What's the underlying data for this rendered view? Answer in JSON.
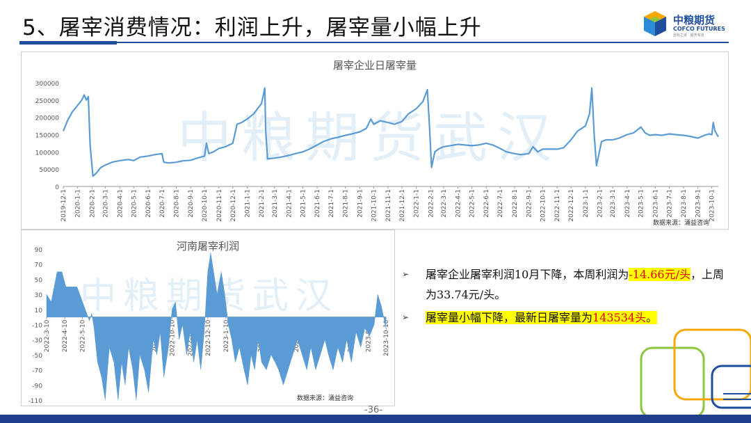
{
  "slide": {
    "title": "5、屠宰消费情况：利润上升，屠宰量小幅上升",
    "logo_cn": "中粮期货",
    "logo_en": "COFCO FUTURES",
    "logo_tagline": "自有之道 · 服务有道",
    "page_number": "-36-"
  },
  "colors": {
    "accent": "#1f4e9c",
    "series": "#5b9bd5",
    "highlight": "#ffff00",
    "emphasis": "#e00000"
  },
  "chart_data": [
    {
      "type": "line",
      "title": "屠宰企业日屠宰量",
      "source": "数据来源：涌益咨询",
      "watermark": "中粮期货武汉",
      "ylim": [
        0,
        300000
      ],
      "yticks": [
        0,
        50000,
        100000,
        150000,
        200000,
        250000,
        300000
      ],
      "xlim": [
        "2019-12-01",
        "2023-10-15"
      ],
      "xticks": [
        "2019-12-1",
        "2020-1-1",
        "2020-2-1",
        "2020-3-1",
        "2020-4-1",
        "2020-5-1",
        "2020-6-1",
        "2020-7-1",
        "2020-8-1",
        "2020-9-1",
        "2020-10-1",
        "2020-11-1",
        "2020-12-1",
        "2021-1-1",
        "2021-2-1",
        "2021-3-1",
        "2021-4-1",
        "2021-5-1",
        "2021-6-1",
        "2021-7-1",
        "2021-8-1",
        "2021-9-1",
        "2021-10-1",
        "2021-11-1",
        "2021-12-1",
        "2022-1-1",
        "2022-2-1",
        "2022-3-1",
        "2022-4-1",
        "2022-5-1",
        "2022-6-1",
        "2022-7-1",
        "2022-8-1",
        "2022-9-1",
        "2022-10-1",
        "2022-11-1",
        "2022-12-1",
        "2023-1-1",
        "2023-2-1",
        "2023-3-1",
        "2023-4-1",
        "2023-5-1",
        "2023-6-1",
        "2023-7-1",
        "2023-8-1",
        "2023-9-1",
        "2023-10-1"
      ],
      "points": [
        [
          "2019-12-01",
          160000
        ],
        [
          "2019-12-10",
          190000
        ],
        [
          "2019-12-20",
          215000
        ],
        [
          "2020-01-01",
          235000
        ],
        [
          "2020-01-10",
          250000
        ],
        [
          "2020-01-15",
          265000
        ],
        [
          "2020-01-20",
          250000
        ],
        [
          "2020-01-24",
          260000
        ],
        [
          "2020-01-28",
          120000
        ],
        [
          "2020-02-03",
          30000
        ],
        [
          "2020-02-10",
          38000
        ],
        [
          "2020-02-20",
          55000
        ],
        [
          "2020-03-01",
          62000
        ],
        [
          "2020-03-15",
          70000
        ],
        [
          "2020-04-01",
          75000
        ],
        [
          "2020-04-20",
          78000
        ],
        [
          "2020-05-01",
          75000
        ],
        [
          "2020-05-15",
          85000
        ],
        [
          "2020-06-01",
          88000
        ],
        [
          "2020-06-15",
          92000
        ],
        [
          "2020-07-01",
          95000
        ],
        [
          "2020-07-05",
          70000
        ],
        [
          "2020-07-15",
          68000
        ],
        [
          "2020-08-01",
          70000
        ],
        [
          "2020-08-15",
          74000
        ],
        [
          "2020-09-01",
          76000
        ],
        [
          "2020-09-15",
          82000
        ],
        [
          "2020-10-01",
          88000
        ],
        [
          "2020-10-05",
          125000
        ],
        [
          "2020-10-10",
          95000
        ],
        [
          "2020-10-20",
          100000
        ],
        [
          "2020-11-01",
          110000
        ],
        [
          "2020-11-15",
          115000
        ],
        [
          "2020-12-01",
          125000
        ],
        [
          "2020-12-10",
          180000
        ],
        [
          "2020-12-20",
          185000
        ],
        [
          "2021-01-01",
          195000
        ],
        [
          "2021-01-15",
          210000
        ],
        [
          "2021-02-01",
          240000
        ],
        [
          "2021-02-08",
          285000
        ],
        [
          "2021-02-10",
          160000
        ],
        [
          "2021-02-14",
          80000
        ],
        [
          "2021-03-01",
          82000
        ],
        [
          "2021-03-15",
          85000
        ],
        [
          "2021-04-01",
          90000
        ],
        [
          "2021-04-15",
          95000
        ],
        [
          "2021-05-01",
          100000
        ],
        [
          "2021-05-15",
          108000
        ],
        [
          "2021-06-01",
          120000
        ],
        [
          "2021-06-15",
          130000
        ],
        [
          "2021-07-01",
          138000
        ],
        [
          "2021-07-15",
          142000
        ],
        [
          "2021-08-01",
          148000
        ],
        [
          "2021-08-15",
          152000
        ],
        [
          "2021-09-01",
          158000
        ],
        [
          "2021-09-15",
          168000
        ],
        [
          "2021-09-25",
          195000
        ],
        [
          "2021-10-01",
          180000
        ],
        [
          "2021-10-15",
          190000
        ],
        [
          "2021-11-01",
          185000
        ],
        [
          "2021-11-15",
          180000
        ],
        [
          "2021-12-01",
          188000
        ],
        [
          "2021-12-15",
          210000
        ],
        [
          "2022-01-01",
          225000
        ],
        [
          "2022-01-15",
          245000
        ],
        [
          "2022-01-25",
          280000
        ],
        [
          "2022-01-30",
          160000
        ],
        [
          "2022-02-03",
          55000
        ],
        [
          "2022-02-10",
          100000
        ],
        [
          "2022-02-20",
          110000
        ],
        [
          "2022-03-01",
          115000
        ],
        [
          "2022-03-15",
          118000
        ],
        [
          "2022-04-01",
          122000
        ],
        [
          "2022-04-15",
          120000
        ],
        [
          "2022-05-01",
          118000
        ],
        [
          "2022-05-15",
          120000
        ],
        [
          "2022-06-01",
          125000
        ],
        [
          "2022-06-15",
          120000
        ],
        [
          "2022-07-01",
          110000
        ],
        [
          "2022-07-15",
          100000
        ],
        [
          "2022-08-01",
          95000
        ],
        [
          "2022-08-15",
          92000
        ],
        [
          "2022-09-01",
          95000
        ],
        [
          "2022-09-10",
          115000
        ],
        [
          "2022-09-20",
          100000
        ],
        [
          "2022-10-01",
          108000
        ],
        [
          "2022-10-15",
          108000
        ],
        [
          "2022-11-01",
          108000
        ],
        [
          "2022-11-15",
          112000
        ],
        [
          "2022-12-01",
          135000
        ],
        [
          "2022-12-15",
          160000
        ],
        [
          "2023-01-01",
          175000
        ],
        [
          "2023-01-10",
          210000
        ],
        [
          "2023-01-15",
          285000
        ],
        [
          "2023-01-20",
          150000
        ],
        [
          "2023-01-25",
          60000
        ],
        [
          "2023-02-05",
          130000
        ],
        [
          "2023-02-15",
          135000
        ],
        [
          "2023-03-01",
          135000
        ],
        [
          "2023-03-15",
          140000
        ],
        [
          "2023-04-01",
          150000
        ],
        [
          "2023-04-15",
          155000
        ],
        [
          "2023-05-01",
          172000
        ],
        [
          "2023-05-10",
          155000
        ],
        [
          "2023-05-20",
          148000
        ],
        [
          "2023-06-01",
          150000
        ],
        [
          "2023-06-15",
          148000
        ],
        [
          "2023-07-01",
          152000
        ],
        [
          "2023-07-15",
          150000
        ],
        [
          "2023-08-01",
          148000
        ],
        [
          "2023-08-15",
          145000
        ],
        [
          "2023-09-01",
          140000
        ],
        [
          "2023-09-15",
          148000
        ],
        [
          "2023-09-25",
          152000
        ],
        [
          "2023-10-01",
          150000
        ],
        [
          "2023-10-04",
          185000
        ],
        [
          "2023-10-08",
          160000
        ],
        [
          "2023-10-15",
          143534
        ]
      ]
    },
    {
      "type": "area",
      "title": "河南屠宰利润",
      "source": "数据来源：涌益咨询",
      "watermark": "中粮期货武汉",
      "ylim": [
        -110,
        90
      ],
      "yticks": [
        90,
        70,
        50,
        30,
        10,
        -10,
        -30,
        -50,
        -70,
        -90,
        -110
      ],
      "xlim": [
        "2022-03-10",
        "2023-10-10"
      ],
      "xticks": [
        "2022-3-10",
        "2022-4-10",
        "2022-5-10",
        "2022-6-10",
        "2022-7-10",
        "2022-8-10",
        "2022-9-10",
        "2022-10-10",
        "2022-11-10",
        "2022-12-10",
        "2023-1-10",
        "2023-2-10",
        "2023-3-10",
        "2023-4-10",
        "2023-5-10",
        "2023-6-10",
        "2023-7-10",
        "2023-8-10",
        "2023-9-10",
        "2023-10-10"
      ],
      "points": [
        [
          "2022-03-10",
          30
        ],
        [
          "2022-03-18",
          20
        ],
        [
          "2022-03-28",
          60
        ],
        [
          "2022-04-05",
          60
        ],
        [
          "2022-04-12",
          40
        ],
        [
          "2022-04-25",
          40
        ],
        [
          "2022-05-01",
          40
        ],
        [
          "2022-05-15",
          10
        ],
        [
          "2022-05-22",
          -5
        ],
        [
          "2022-05-26",
          5
        ],
        [
          "2022-05-30",
          -15
        ],
        [
          "2022-06-05",
          -60
        ],
        [
          "2022-06-12",
          -80
        ],
        [
          "2022-06-18",
          -110
        ],
        [
          "2022-06-25",
          -40
        ],
        [
          "2022-07-03",
          -60
        ],
        [
          "2022-07-10",
          -110
        ],
        [
          "2022-07-16",
          -60
        ],
        [
          "2022-07-22",
          -90
        ],
        [
          "2022-07-28",
          -40
        ],
        [
          "2022-08-04",
          -70
        ],
        [
          "2022-08-10",
          -110
        ],
        [
          "2022-08-16",
          -50
        ],
        [
          "2022-08-24",
          -70
        ],
        [
          "2022-08-31",
          -100
        ],
        [
          "2022-09-08",
          -30
        ],
        [
          "2022-09-14",
          -50
        ],
        [
          "2022-09-20",
          -20
        ],
        [
          "2022-09-26",
          -80
        ],
        [
          "2022-10-04",
          -40
        ],
        [
          "2022-10-10",
          10
        ],
        [
          "2022-10-16",
          20
        ],
        [
          "2022-10-22",
          -30
        ],
        [
          "2022-10-28",
          -10
        ],
        [
          "2022-11-04",
          -50
        ],
        [
          "2022-11-10",
          -20
        ],
        [
          "2022-11-16",
          -60
        ],
        [
          "2022-11-22",
          -30
        ],
        [
          "2022-11-28",
          -70
        ],
        [
          "2022-12-04",
          -20
        ],
        [
          "2022-12-10",
          60
        ],
        [
          "2022-12-15",
          85
        ],
        [
          "2022-12-20",
          60
        ],
        [
          "2022-12-26",
          30
        ],
        [
          "2023-01-02",
          60
        ],
        [
          "2023-01-08",
          30
        ],
        [
          "2023-01-14",
          -10
        ],
        [
          "2023-01-20",
          -30
        ],
        [
          "2023-01-26",
          -60
        ],
        [
          "2023-02-02",
          -40
        ],
        [
          "2023-02-10",
          -70
        ],
        [
          "2023-02-16",
          -90
        ],
        [
          "2023-02-22",
          -50
        ],
        [
          "2023-02-28",
          -70
        ],
        [
          "2023-03-06",
          -30
        ],
        [
          "2023-03-12",
          -60
        ],
        [
          "2023-03-20",
          -70
        ],
        [
          "2023-03-28",
          -50
        ],
        [
          "2023-04-04",
          -60
        ],
        [
          "2023-04-10",
          -70
        ],
        [
          "2023-04-18",
          -90
        ],
        [
          "2023-04-26",
          -70
        ],
        [
          "2023-05-04",
          -50
        ],
        [
          "2023-05-12",
          -30
        ],
        [
          "2023-05-20",
          -50
        ],
        [
          "2023-05-28",
          -70
        ],
        [
          "2023-06-04",
          -40
        ],
        [
          "2023-06-12",
          -70
        ],
        [
          "2023-06-20",
          -50
        ],
        [
          "2023-06-28",
          -30
        ],
        [
          "2023-07-04",
          -50
        ],
        [
          "2023-07-12",
          -70
        ],
        [
          "2023-07-20",
          -40
        ],
        [
          "2023-07-28",
          -60
        ],
        [
          "2023-08-04",
          -30
        ],
        [
          "2023-08-12",
          -60
        ],
        [
          "2023-08-20",
          -20
        ],
        [
          "2023-08-28",
          -40
        ],
        [
          "2023-09-04",
          -15
        ],
        [
          "2023-09-12",
          -25
        ],
        [
          "2023-09-20",
          -10
        ],
        [
          "2023-09-26",
          30
        ],
        [
          "2023-10-02",
          15
        ],
        [
          "2023-10-10",
          -15
        ]
      ]
    }
  ],
  "bullets": [
    {
      "pre": "屠宰企业屠宰利润10月下降，本周利润为",
      "hl1": "-14.66元/头",
      "mid": "，上周为33.74元/头。"
    },
    {
      "hl_pre": "屠宰量小幅下降，最新日屠宰量为",
      "hl_red": "143534头",
      "hl_post": "。"
    }
  ]
}
